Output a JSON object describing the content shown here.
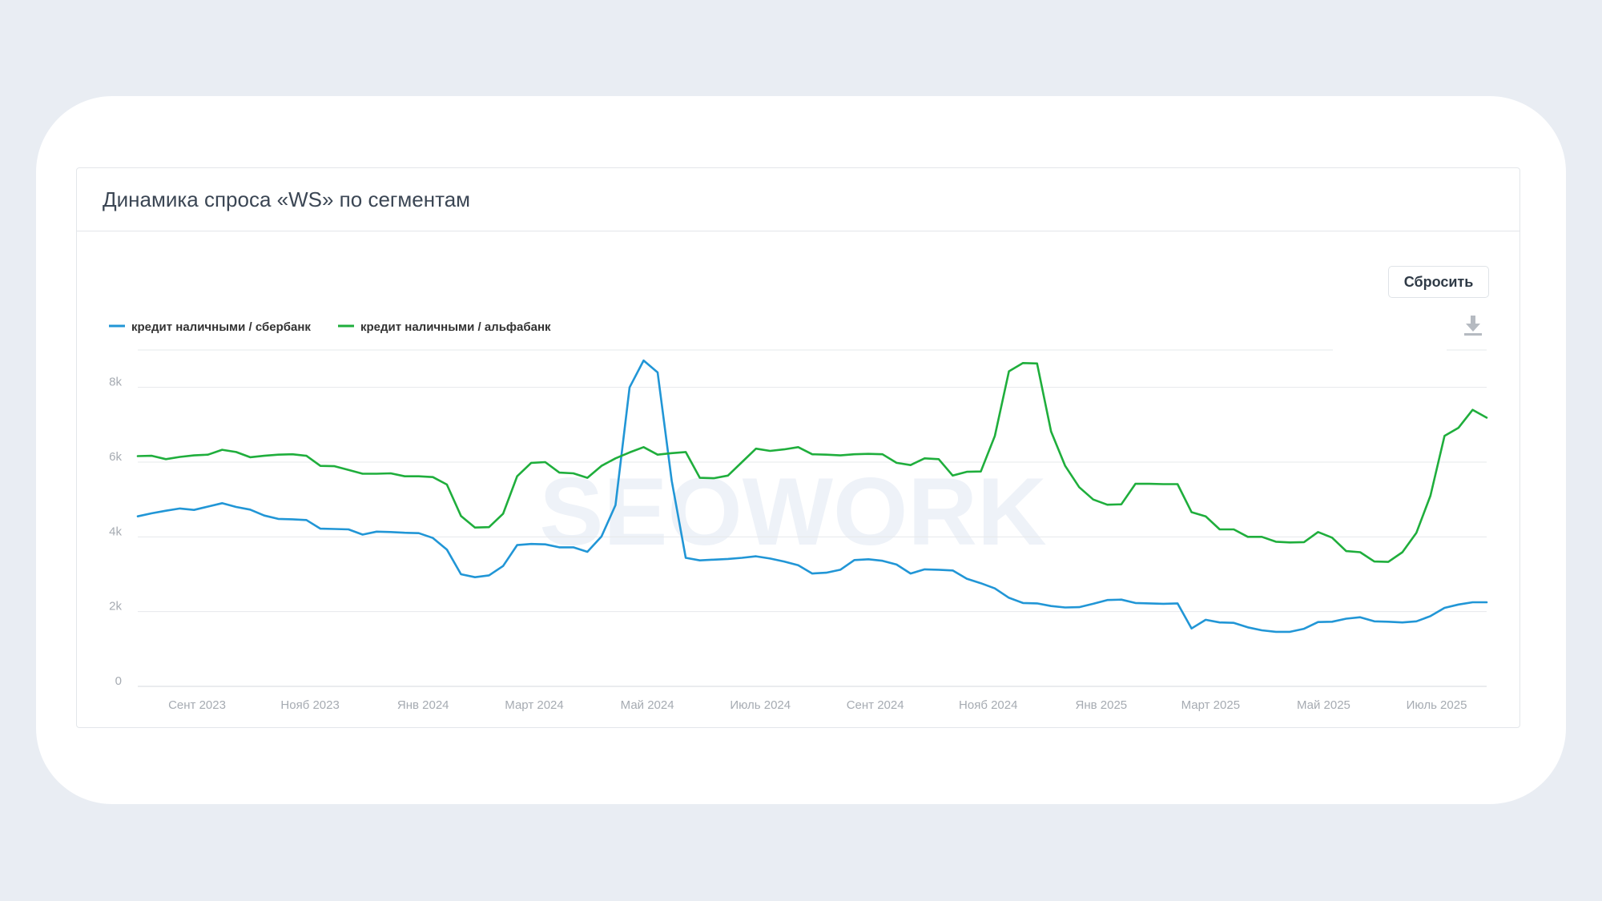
{
  "title": "Динамика спроса «WS» по сегментам",
  "reset_label": "Сбросить",
  "download_icon": "download-icon",
  "watermark": "SEOWORK",
  "colors": {
    "series1": "#2196d6",
    "series2": "#1fae3c"
  },
  "chart_data": {
    "type": "line",
    "title": "Динамика спроса «WS» по сегментам",
    "xlabel": "",
    "ylabel": "",
    "ylim": [
      0,
      9000
    ],
    "y_ticks": [
      0,
      2000,
      4000,
      6000,
      8000
    ],
    "y_tick_labels": [
      "0",
      "2k",
      "4k",
      "6k",
      "8k"
    ],
    "x_range": [
      "2023-07-31",
      "2025-07-28"
    ],
    "x_tick_positions": [
      "2023-09-01",
      "2023-11-01",
      "2024-01-01",
      "2024-03-01",
      "2024-05-01",
      "2024-07-01",
      "2024-09-01",
      "2024-11-01",
      "2025-01-01",
      "2025-03-01",
      "2025-05-01",
      "2025-07-01"
    ],
    "x_tick_labels": [
      "Сент 2023",
      "Нояб 2023",
      "Янв 2024",
      "Март 2024",
      "Май 2024",
      "Июль 2024",
      "Сент 2024",
      "Нояб 2024",
      "Янв 2025",
      "Март 2025",
      "Май 2025",
      "Июль 2025"
    ],
    "legend_position": "top-left",
    "grid": true,
    "series": [
      {
        "name": "кредит наличными / сбербанк",
        "color": "#2196d6",
        "values": [
          4550,
          4630,
          4700,
          4760,
          4720,
          4810,
          4900,
          4800,
          4730,
          4570,
          4480,
          4470,
          4450,
          4220,
          4210,
          4200,
          4060,
          4140,
          4130,
          4110,
          4100,
          3970,
          3660,
          3000,
          2920,
          2970,
          3220,
          3780,
          3810,
          3800,
          3720,
          3720,
          3600,
          4010,
          4850,
          8000,
          8720,
          8400,
          5500,
          3440,
          3370,
          3390,
          3410,
          3440,
          3480,
          3420,
          3340,
          3240,
          3020,
          3040,
          3120,
          3380,
          3400,
          3360,
          3260,
          3020,
          3130,
          3120,
          3100,
          2880,
          2760,
          2620,
          2370,
          2230,
          2220,
          2150,
          2110,
          2120,
          2210,
          2310,
          2320,
          2230,
          2220,
          2210,
          2220,
          1550,
          1780,
          1710,
          1700,
          1580,
          1500,
          1460,
          1460,
          1540,
          1720,
          1730,
          1810,
          1850,
          1740,
          1730,
          1710,
          1740,
          1880,
          2100,
          2190,
          2250,
          2250
        ]
      },
      {
        "name": "кредит наличными / альфабанк",
        "color": "#1fae3c",
        "values": [
          6160,
          6170,
          6080,
          6140,
          6180,
          6200,
          6330,
          6270,
          6130,
          6170,
          6200,
          6210,
          6170,
          5900,
          5890,
          5790,
          5690,
          5690,
          5700,
          5620,
          5620,
          5600,
          5400,
          4560,
          4250,
          4260,
          4620,
          5620,
          5980,
          6000,
          5720,
          5700,
          5580,
          5900,
          6100,
          6260,
          6400,
          6200,
          6240,
          6270,
          5580,
          5570,
          5640,
          6000,
          6360,
          6300,
          6340,
          6400,
          6210,
          6200,
          6180,
          6210,
          6220,
          6210,
          5980,
          5920,
          6100,
          6080,
          5640,
          5740,
          5750,
          6700,
          8430,
          8650,
          8640,
          6820,
          5900,
          5330,
          5000,
          4860,
          4870,
          5420,
          5420,
          5410,
          5410,
          4660,
          4550,
          4200,
          4200,
          4000,
          4000,
          3870,
          3850,
          3860,
          4130,
          3980,
          3620,
          3590,
          3340,
          3330,
          3590,
          4110,
          5100,
          6700,
          6920,
          7400,
          7190
        ]
      }
    ]
  }
}
